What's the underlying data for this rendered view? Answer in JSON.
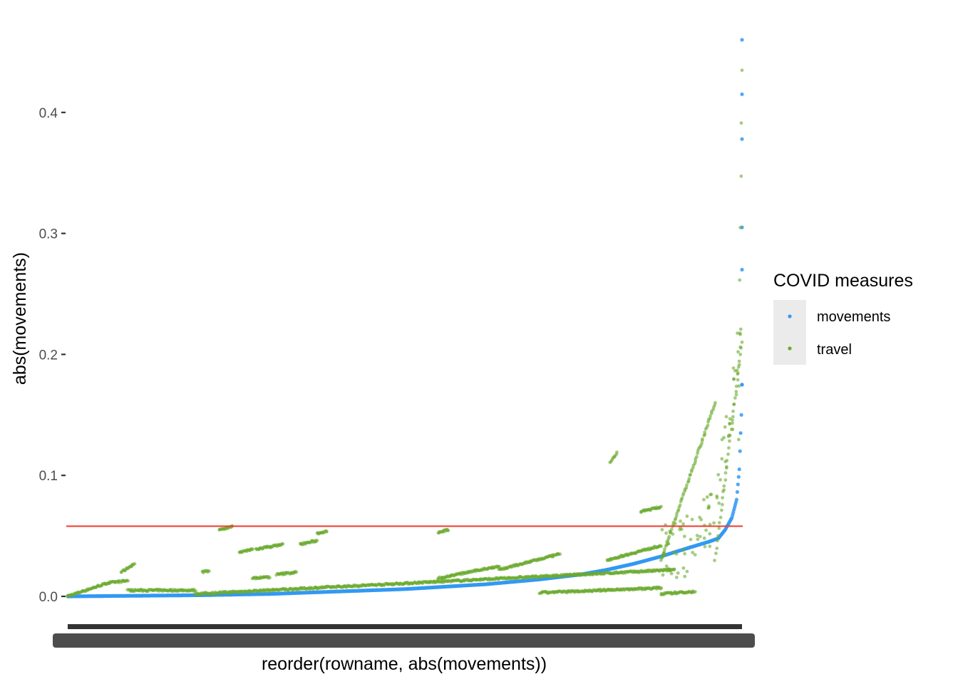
{
  "chart_data": {
    "type": "scatter",
    "title": "",
    "xlabel": "reorder(rowname, abs(movements))",
    "ylabel": "abs(movements)",
    "y_ticks": [
      "0.0",
      "0.1",
      "0.2",
      "0.3",
      "0.4"
    ],
    "y_tick_values": [
      0.0,
      0.1,
      0.2,
      0.3,
      0.4
    ],
    "ylim": [
      -0.02,
      0.47
    ],
    "x_count": 1000,
    "x_tick_labels": "overplotted row names (illegible)",
    "grid": false,
    "legend": {
      "title": "COVID measures",
      "placement": "right",
      "entries": [
        "movements",
        "travel"
      ]
    },
    "colors": {
      "movements": "#3399f2",
      "travel": "#6aaa2f",
      "hline": "#f0392e"
    },
    "hline": 0.058,
    "series": [
      {
        "name": "movements",
        "description": "sorted ascending absolute movements",
        "points": [
          [
            1,
            0.0
          ],
          [
            100,
            0.0005
          ],
          [
            200,
            0.001
          ],
          [
            300,
            0.002
          ],
          [
            400,
            0.004
          ],
          [
            500,
            0.006
          ],
          [
            560,
            0.008
          ],
          [
            620,
            0.01
          ],
          [
            700,
            0.014
          ],
          [
            760,
            0.018
          ],
          [
            800,
            0.022
          ],
          [
            840,
            0.027
          ],
          [
            880,
            0.033
          ],
          [
            920,
            0.04
          ],
          [
            950,
            0.045
          ],
          [
            965,
            0.048
          ],
          [
            975,
            0.055
          ],
          [
            985,
            0.065
          ],
          [
            992,
            0.08
          ],
          [
            996,
            0.105
          ],
          [
            999,
            0.15
          ],
          [
            1000,
            0.175
          ],
          [
            1000,
            0.27
          ],
          [
            1000,
            0.305
          ],
          [
            1000,
            0.378
          ],
          [
            1000,
            0.415
          ],
          [
            1000,
            0.46
          ]
        ]
      },
      {
        "name": "travel",
        "description": "travel values for the same reordered rows",
        "clusters": [
          {
            "x": [
              0,
              60
            ],
            "y": [
              0.0,
              0.011
            ]
          },
          {
            "x": [
              60,
              90
            ],
            "y": [
              0.011,
              0.013
            ]
          },
          {
            "x": [
              80,
              100
            ],
            "y": [
              0.02,
              0.027
            ]
          },
          {
            "x": [
              90,
              190
            ],
            "y": [
              0.005,
              0.005
            ]
          },
          {
            "x": [
              190,
              900
            ],
            "y": [
              0.002,
              0.022
            ]
          },
          {
            "x": [
              200,
              210
            ],
            "y": [
              0.02,
              0.021
            ]
          },
          {
            "x": [
              225,
              245
            ],
            "y": [
              0.055,
              0.058
            ]
          },
          {
            "x": [
              255,
              275
            ],
            "y": [
              0.036,
              0.039
            ]
          },
          {
            "x": [
              280,
              320
            ],
            "y": [
              0.039,
              0.043
            ]
          },
          {
            "x": [
              275,
              300
            ],
            "y": [
              0.015,
              0.016
            ]
          },
          {
            "x": [
              310,
              340
            ],
            "y": [
              0.018,
              0.02
            ]
          },
          {
            "x": [
              345,
              370
            ],
            "y": [
              0.043,
              0.046
            ]
          },
          {
            "x": [
              370,
              385
            ],
            "y": [
              0.052,
              0.054
            ]
          },
          {
            "x": [
              550,
              565
            ],
            "y": [
              0.053,
              0.055
            ]
          },
          {
            "x": [
              550,
              640
            ],
            "y": [
              0.015,
              0.025
            ]
          },
          {
            "x": [
              640,
              730
            ],
            "y": [
              0.022,
              0.035
            ]
          },
          {
            "x": [
              700,
              880
            ],
            "y": [
              0.003,
              0.007
            ]
          },
          {
            "x": [
              800,
              880
            ],
            "y": [
              0.03,
              0.042
            ]
          },
          {
            "x": [
              805,
              815
            ],
            "y": [
              0.11,
              0.119
            ]
          },
          {
            "x": [
              850,
              880
            ],
            "y": [
              0.07,
              0.074
            ]
          },
          {
            "x": [
              880,
              930
            ],
            "y": [
              0.002,
              0.004
            ]
          },
          {
            "x": [
              880,
              960
            ],
            "y": [
              0.03,
              0.16
            ]
          },
          {
            "x": [
              960,
              1000
            ],
            "y": [
              0.03,
              0.21
            ]
          },
          {
            "x": [
              995,
              1000
            ],
            "y": [
              0.13,
              0.435
            ]
          }
        ]
      }
    ]
  }
}
